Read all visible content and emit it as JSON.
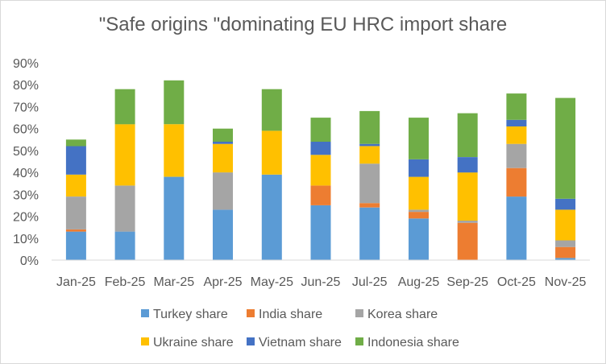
{
  "chart_data": {
    "type": "bar",
    "stacked": true,
    "title": "\"Safe origins \"dominating EU HRC import share",
    "xlabel": "",
    "ylabel": "",
    "ylim": [
      0,
      0.9
    ],
    "yticks": [
      "0%",
      "10%",
      "20%",
      "30%",
      "40%",
      "50%",
      "60%",
      "70%",
      "80%",
      "90%"
    ],
    "grid": false,
    "legend_position": "bottom",
    "categories": [
      "Jan-25",
      "Feb-25",
      "Mar-25",
      "Apr-25",
      "May-25",
      "Jun-25",
      "Jul-25",
      "Aug-25",
      "Sep-25",
      "Oct-25",
      "Nov-25"
    ],
    "series": [
      {
        "name": "Turkey share",
        "color": "#5b9bd5",
        "values": [
          0.13,
          0.13,
          0.38,
          0.23,
          0.39,
          0.25,
          0.24,
          0.19,
          0.0,
          0.29,
          0.01
        ]
      },
      {
        "name": "India share",
        "color": "#ed7d31",
        "values": [
          0.01,
          0.0,
          0.0,
          0.0,
          0.0,
          0.09,
          0.02,
          0.03,
          0.17,
          0.13,
          0.05
        ]
      },
      {
        "name": "Korea share",
        "color": "#a5a5a5",
        "values": [
          0.15,
          0.21,
          0.0,
          0.17,
          0.0,
          0.0,
          0.18,
          0.01,
          0.01,
          0.11,
          0.03
        ]
      },
      {
        "name": "Ukraine share",
        "color": "#ffc000",
        "values": [
          0.1,
          0.28,
          0.24,
          0.13,
          0.2,
          0.14,
          0.08,
          0.15,
          0.22,
          0.08,
          0.14
        ]
      },
      {
        "name": "Vietnam share",
        "color": "#4472c4",
        "values": [
          0.13,
          0.0,
          0.0,
          0.01,
          0.0,
          0.06,
          0.01,
          0.08,
          0.07,
          0.03,
          0.05
        ]
      },
      {
        "name": "Indonesia share",
        "color": "#70ad47",
        "values": [
          0.03,
          0.16,
          0.2,
          0.06,
          0.19,
          0.11,
          0.15,
          0.19,
          0.2,
          0.12,
          0.46
        ]
      }
    ]
  }
}
